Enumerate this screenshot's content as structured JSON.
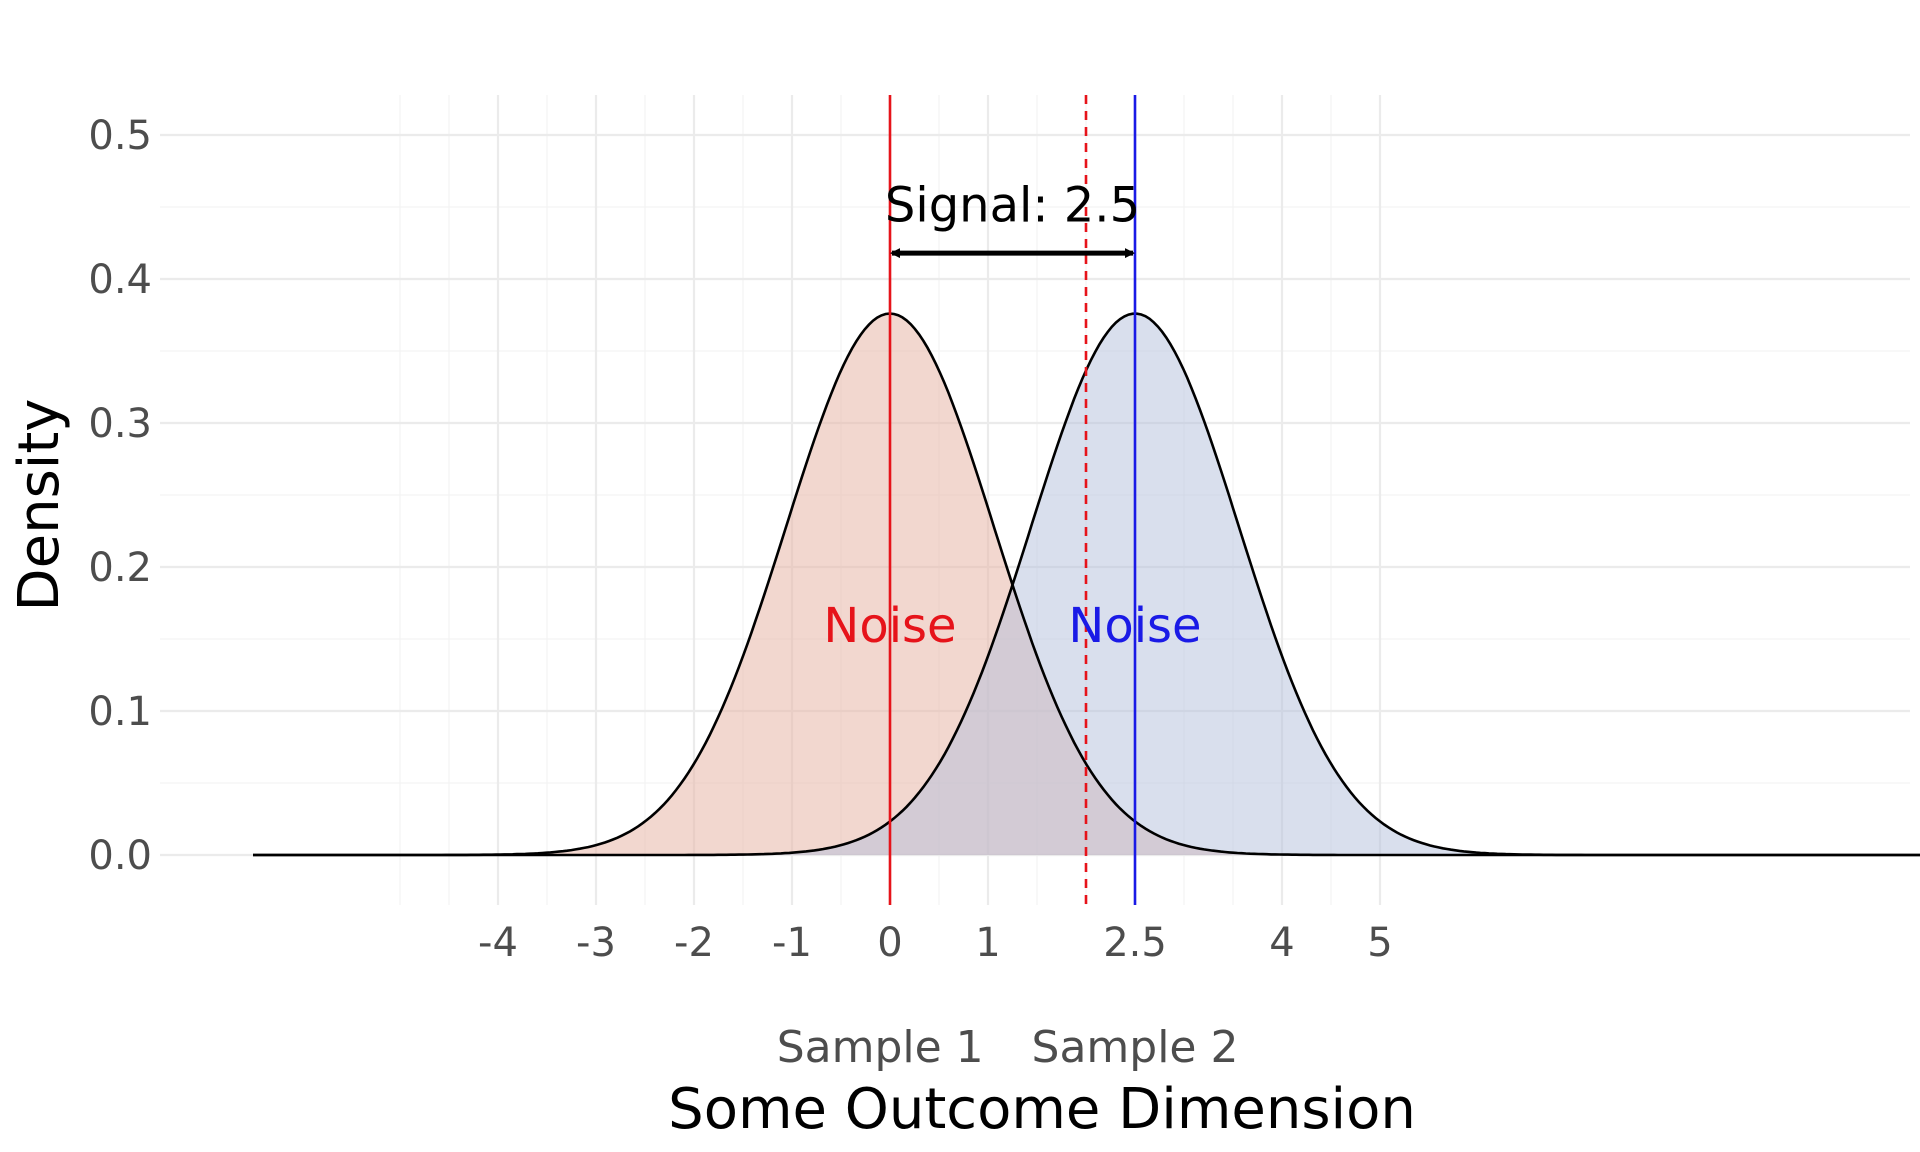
{
  "chart_data": {
    "type": "area",
    "title": "",
    "xlabel": "Some Outcome Dimension",
    "ylabel": "Density",
    "xlim": [
      -6.5,
      10.6
    ],
    "ylim": [
      -0.033,
      0.515
    ],
    "x_ticks": [
      {
        "value": -4,
        "label": "-4"
      },
      {
        "value": -3,
        "label": "-3"
      },
      {
        "value": -2,
        "label": "-2"
      },
      {
        "value": -1,
        "label": "-1"
      },
      {
        "value": 0,
        "label": "0"
      },
      {
        "value": 1,
        "label": "1"
      },
      {
        "value": 2.5,
        "label": "2.5"
      },
      {
        "value": 4,
        "label": "4"
      },
      {
        "value": 5,
        "label": "5"
      }
    ],
    "x_minor_grid": [
      -5,
      -4.5,
      -3.5,
      -2.5,
      -1.5,
      -0.5,
      0.5,
      1.5,
      2,
      3,
      3.5,
      4.5
    ],
    "y_ticks": [
      {
        "value": 0.0,
        "label": "0.0"
      },
      {
        "value": 0.1,
        "label": "0.1"
      },
      {
        "value": 0.2,
        "label": "0.2"
      },
      {
        "value": 0.3,
        "label": "0.3"
      },
      {
        "value": 0.4,
        "label": "0.4"
      },
      {
        "value": 0.5,
        "label": "0.5"
      }
    ],
    "y_minor_grid": [
      0.05,
      0.15,
      0.25,
      0.35,
      0.45
    ],
    "grid": true,
    "series": [
      {
        "name": "Sample 1",
        "mean": 0,
        "sd": 1.06,
        "peak_density": 0.376,
        "x_range": [
          -6.5,
          10.6
        ],
        "fill": "#e8b7a8",
        "fill_opacity": 0.55,
        "line_color": "#000000"
      },
      {
        "name": "Sample 2",
        "mean": 2.5,
        "sd": 1.06,
        "peak_density": 0.376,
        "x_range": [
          -6.5,
          10.6
        ],
        "fill": "#b3bfdc",
        "fill_opacity": 0.5,
        "line_color": "#000000"
      }
    ],
    "vlines": [
      {
        "x": 0,
        "color": "#e6131a",
        "style": "solid"
      },
      {
        "x": 2.5,
        "color": "#1a1ae6",
        "style": "solid"
      },
      {
        "x": 2.0,
        "color": "#e6131a",
        "style": "dashed"
      }
    ],
    "annotations": {
      "signal_arrow": {
        "x_from": 0,
        "x_to": 2.5,
        "y": 0.418
      },
      "signal_label": {
        "text": "Signal: 2.5",
        "x": 1.25,
        "y": 0.44
      },
      "noise_labels": [
        {
          "text": "Noise",
          "x": 0,
          "y": 0.148,
          "color": "#e6131a"
        },
        {
          "text": "Noise",
          "x": 2.5,
          "y": 0.148,
          "color": "#1a1ae6"
        }
      ],
      "group_labels": [
        {
          "text": "Sample 1",
          "x": -0.1
        },
        {
          "text": "Sample 2",
          "x": 2.5
        }
      ]
    }
  }
}
